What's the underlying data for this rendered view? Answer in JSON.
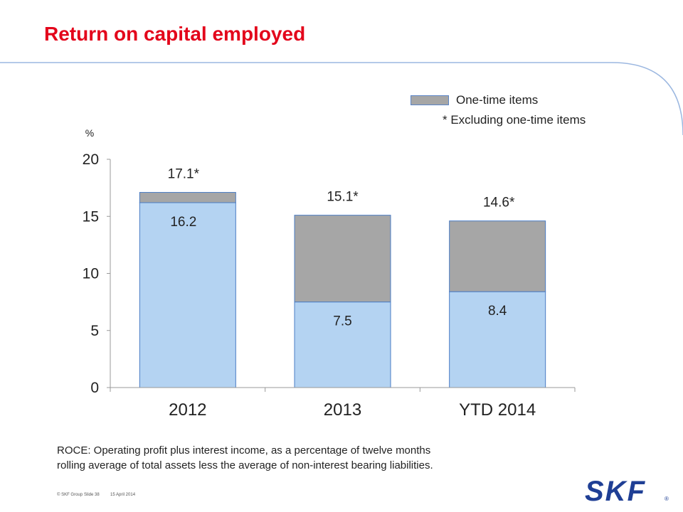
{
  "slide": {
    "title": "Return on capital employed",
    "footnote_line1": "ROCE: Operating profit plus interest income, as a percentage of twelve months",
    "footnote_line2": "rolling average of total assets less the average of non-interest bearing liabilities.",
    "footer_copyright": "© SKF Group",
    "footer_slide": "Slide 38",
    "footer_date": "15 April 2014",
    "logo_text": "SKF",
    "colors": {
      "title": "#e3051b",
      "logo": "#1f3f95",
      "bar_base": "#b4d3f2",
      "bar_onetime": "#a6a6a6",
      "bar_border": "#4a7cc4"
    }
  },
  "legend": {
    "one_time_label": "One-time items",
    "note": "*  Excluding one-time items"
  },
  "chart_data": {
    "type": "bar",
    "stacked": true,
    "unit_label": "%",
    "categories": [
      "2012",
      "2013",
      "YTD 2014"
    ],
    "series": [
      {
        "values": [
          16.2,
          7.5,
          8.4
        ]
      },
      {
        "name": "One-time items",
        "values": [
          0.9,
          7.6,
          6.2
        ]
      }
    ],
    "base_labels": [
      "16.2",
      "7.5",
      "8.4"
    ],
    "total_labels": [
      "17.1*",
      "15.1*",
      "14.6*"
    ],
    "totals": [
      17.1,
      15.1,
      14.6
    ],
    "ylim": [
      0,
      20
    ],
    "yticks": [
      "0",
      "5",
      "10",
      "15",
      "20"
    ],
    "grid": false,
    "legend_position": "top-right"
  }
}
